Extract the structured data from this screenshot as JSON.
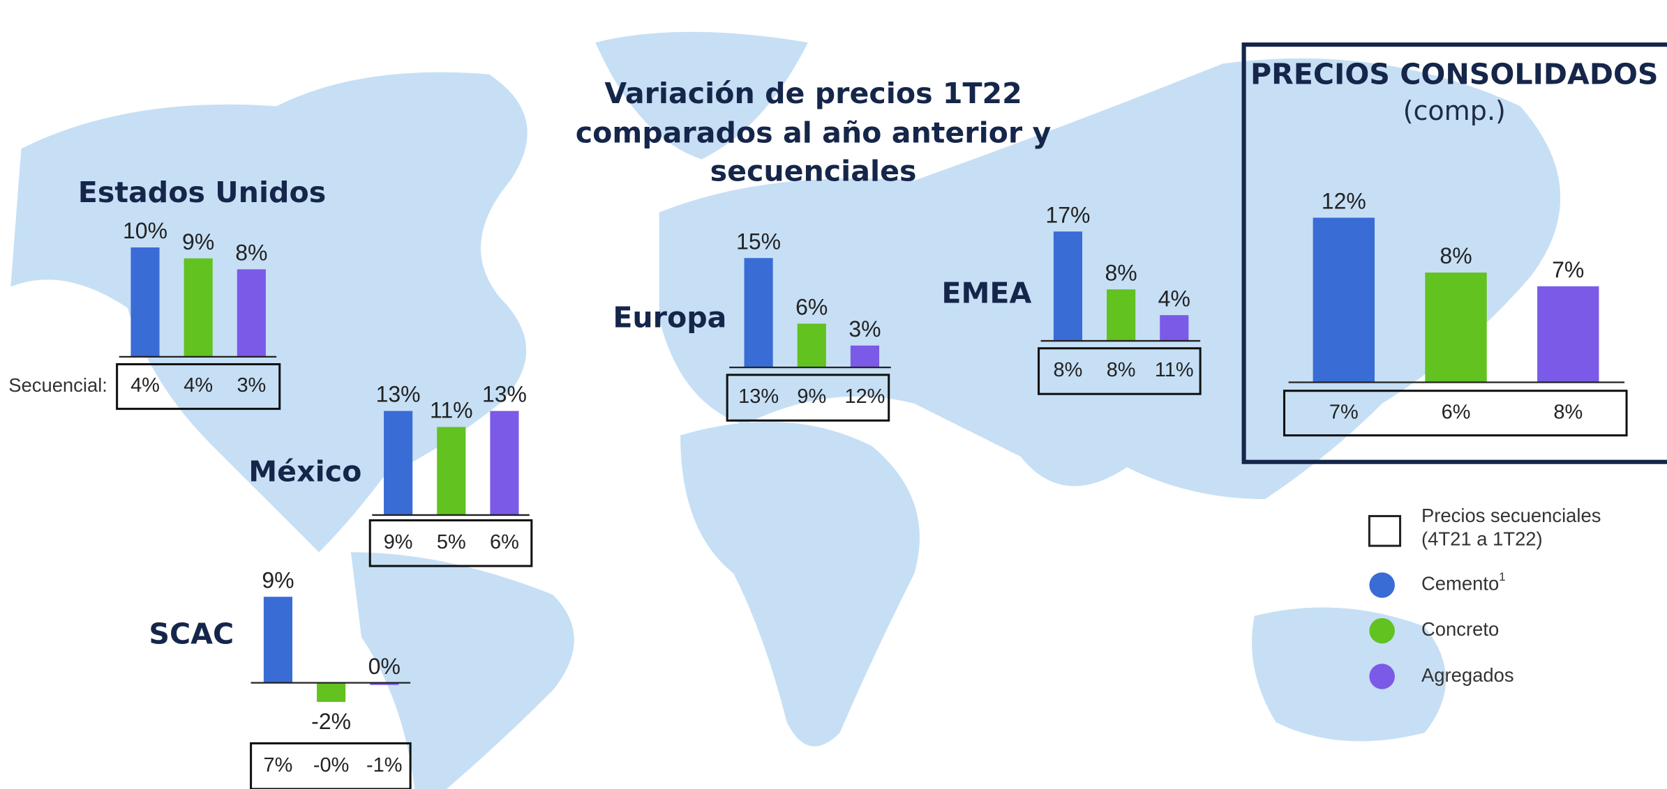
{
  "title_lines": [
    "Variación de precios 1T22",
    "comparados al año anterior y",
    "secuenciales"
  ],
  "chart_data": [
    {
      "type": "bar",
      "title": "Estados Unidos",
      "values": [
        10,
        9,
        8
      ],
      "value_labels": [
        "10%",
        "9%",
        "8%"
      ],
      "sequential_caption": "Secuencial:",
      "sequential": [
        "4%",
        "4%",
        "3%"
      ]
    },
    {
      "type": "bar",
      "title": "México",
      "values": [
        13,
        11,
        13
      ],
      "value_labels": [
        "13%",
        "11%",
        "13%"
      ],
      "sequential": [
        "9%",
        "5%",
        "6%"
      ]
    },
    {
      "type": "bar",
      "title": "SCAC",
      "values": [
        9,
        -2,
        0
      ],
      "value_labels": [
        "9%",
        "-2%",
        "0%"
      ],
      "sequential": [
        "7%",
        "-0%",
        "-1%"
      ]
    },
    {
      "type": "bar",
      "title": "Europa",
      "values": [
        15,
        6,
        3
      ],
      "value_labels": [
        "15%",
        "6%",
        "3%"
      ],
      "sequential": [
        "13%",
        "9%",
        "12%"
      ]
    },
    {
      "type": "bar",
      "title": "EMEA",
      "values": [
        17,
        8,
        4
      ],
      "value_labels": [
        "17%",
        "8%",
        "4%"
      ],
      "sequential": [
        "8%",
        "8%",
        "11%"
      ]
    },
    {
      "type": "bar",
      "title": "PRECIOS CONSOLIDADOS",
      "subtitle": "(comp.)",
      "values": [
        12,
        8,
        7
      ],
      "value_labels": [
        "12%",
        "8%",
        "7%"
      ],
      "sequential": [
        "7%",
        "6%",
        "8%"
      ]
    }
  ],
  "legend": {
    "box_label_lines": [
      "Precios secuenciales",
      "(4T21 a 1T22)"
    ],
    "items": [
      {
        "label": "Cemento",
        "note": "1",
        "color": "#3a6cd6"
      },
      {
        "label": "Concreto",
        "color": "#62c21f"
      },
      {
        "label": "Agregados",
        "color": "#7b5ae8"
      }
    ]
  }
}
